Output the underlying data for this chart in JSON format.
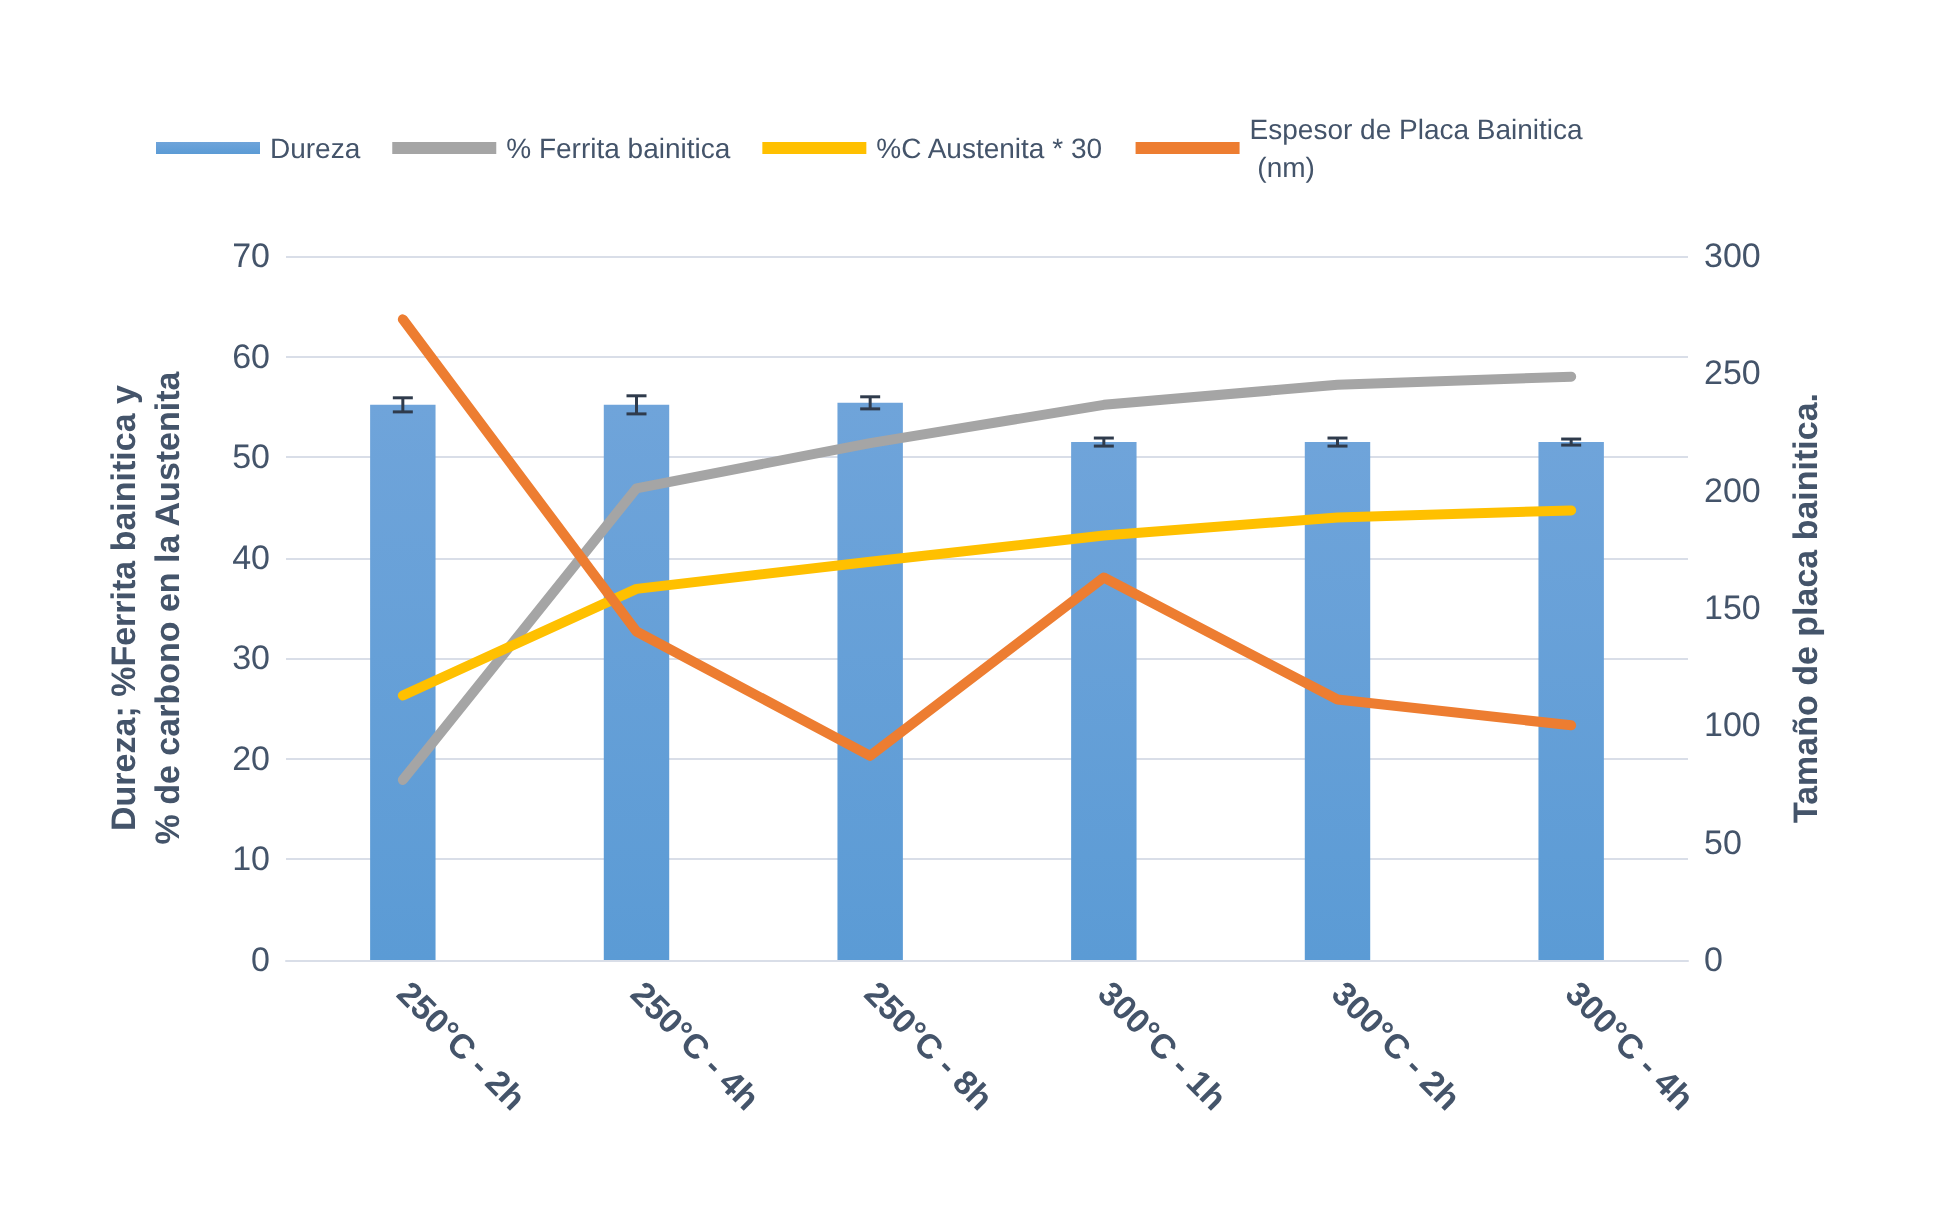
{
  "chart_data": {
    "type": "bar",
    "categories": [
      "250°C - 2h",
      "250°C - 4h",
      "250°C - 8h",
      "300°C - 1h",
      "300°C - 2h",
      "300°C - 4h"
    ],
    "ylabel": "Dureza; %Ferrita bainitica y\n% de carbono en la Austenita",
    "y2label": "Tamaño de placa bainitica.",
    "series": [
      {
        "name": "Dureza",
        "color": "#5b9bd5",
        "values": [
          55.2,
          55.2,
          55.4,
          51.5,
          51.5,
          51.5
        ],
        "errors": [
          0.7,
          0.9,
          0.6,
          0.4,
          0.4,
          0.3
        ]
      },
      {
        "name": "% Ferrita bainitica",
        "type": "line",
        "color": "#a5a5a5",
        "values": [
          17.9,
          46.9,
          51.4,
          55.2,
          57.2,
          58.0
        ]
      },
      {
        "name": "%C Austenita * 30",
        "type": "line",
        "color": "#ffc000",
        "values": [
          26.3,
          36.9,
          39.6,
          42.2,
          44.0,
          44.7
        ]
      },
      {
        "name": "Espesor de Placa Bainitica (nm)",
        "type": "line",
        "axis": "y2",
        "color": "#ed7d31",
        "values": [
          273,
          140,
          87,
          163,
          111,
          100
        ]
      }
    ],
    "ylim": [
      0,
      70
    ],
    "yticks": [
      0,
      10,
      20,
      30,
      40,
      50,
      60,
      70
    ],
    "y2lim": [
      0,
      300
    ],
    "y2ticks": [
      0,
      50,
      100,
      150,
      200,
      250,
      300
    ],
    "grid": "y",
    "legend": "top",
    "marker": "none",
    "line_style": "solid"
  }
}
